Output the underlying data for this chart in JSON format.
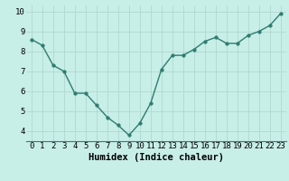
{
  "x": [
    0,
    1,
    2,
    3,
    4,
    5,
    6,
    7,
    8,
    9,
    10,
    11,
    12,
    13,
    14,
    15,
    16,
    17,
    18,
    19,
    20,
    21,
    22,
    23
  ],
  "y": [
    8.6,
    8.3,
    7.3,
    7.0,
    5.9,
    5.9,
    5.3,
    4.7,
    4.3,
    3.8,
    4.4,
    5.4,
    7.1,
    7.8,
    7.8,
    8.1,
    8.5,
    8.7,
    8.4,
    8.4,
    8.8,
    9.0,
    9.3,
    9.9
  ],
  "line_color": "#2e7d6e",
  "marker_color": "#2e7d6e",
  "bg_color": "#c8eee8",
  "grid_color": "#b0d8d0",
  "xlabel": "Humidex (Indice chaleur)",
  "xlim": [
    -0.5,
    23.5
  ],
  "ylim": [
    3.5,
    10.3
  ],
  "yticks": [
    4,
    5,
    6,
    7,
    8,
    9,
    10
  ],
  "xticks": [
    0,
    1,
    2,
    3,
    4,
    5,
    6,
    7,
    8,
    9,
    10,
    11,
    12,
    13,
    14,
    15,
    16,
    17,
    18,
    19,
    20,
    21,
    22,
    23
  ],
  "xlabel_fontsize": 7.5,
  "tick_fontsize": 6.5,
  "line_width": 1.0,
  "marker_size": 2.5
}
